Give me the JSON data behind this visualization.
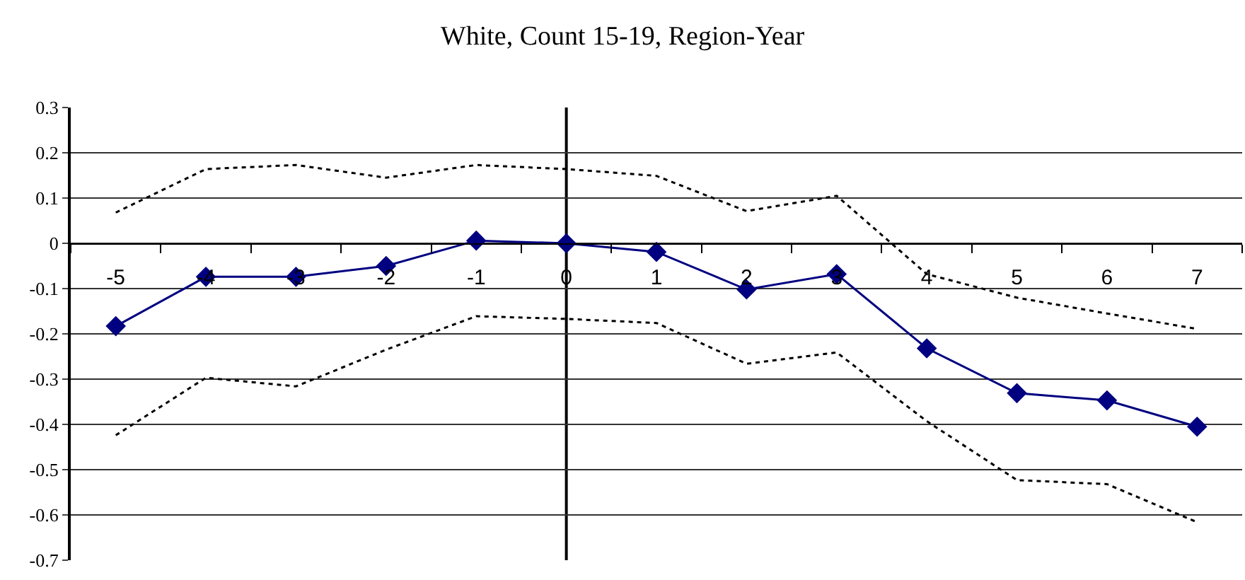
{
  "chart_data": {
    "type": "line",
    "title": "White, Count 15-19, Region-Year",
    "x": [
      -5,
      -4,
      -3,
      -2,
      -1,
      0,
      1,
      2,
      3,
      4,
      5,
      6,
      7
    ],
    "xlim": [
      -5.5,
      7.5
    ],
    "xticks": [
      -5,
      -4,
      -3,
      -2,
      -1,
      0,
      1,
      2,
      3,
      4,
      5,
      6,
      7
    ],
    "ylim": [
      -0.7,
      0.3
    ],
    "yticks": [
      -0.7,
      -0.6,
      -0.5,
      -0.4,
      -0.3,
      -0.2,
      -0.1,
      0,
      0.1,
      0.2,
      0.3
    ],
    "grid": "y",
    "series": [
      {
        "color": "#000080",
        "marker": "diamond",
        "line_style": "solid",
        "values": [
          -0.183,
          -0.074,
          -0.074,
          -0.05,
          0.006,
          0,
          -0.019,
          -0.102,
          -0.068,
          -0.232,
          -0.331,
          -0.347,
          -0.405
        ]
      },
      {
        "color": "#000000",
        "marker": "none",
        "line_style": "dotted",
        "values": [
          0.068,
          0.164,
          0.173,
          0.145,
          0.173,
          0.164,
          0.149,
          0.071,
          0.105,
          -0.068,
          -0.12,
          -0.155,
          -0.189
        ]
      },
      {
        "color": "#000000",
        "marker": "none",
        "line_style": "dotted",
        "values": [
          -0.424,
          -0.297,
          -0.316,
          -0.235,
          -0.161,
          -0.167,
          -0.176,
          -0.266,
          -0.241,
          -0.393,
          -0.523,
          -0.532,
          -0.616
        ]
      }
    ],
    "ref_lines": [
      {
        "axis": "x",
        "value": 0,
        "color": "#000000",
        "line_style": "solid"
      }
    ]
  }
}
